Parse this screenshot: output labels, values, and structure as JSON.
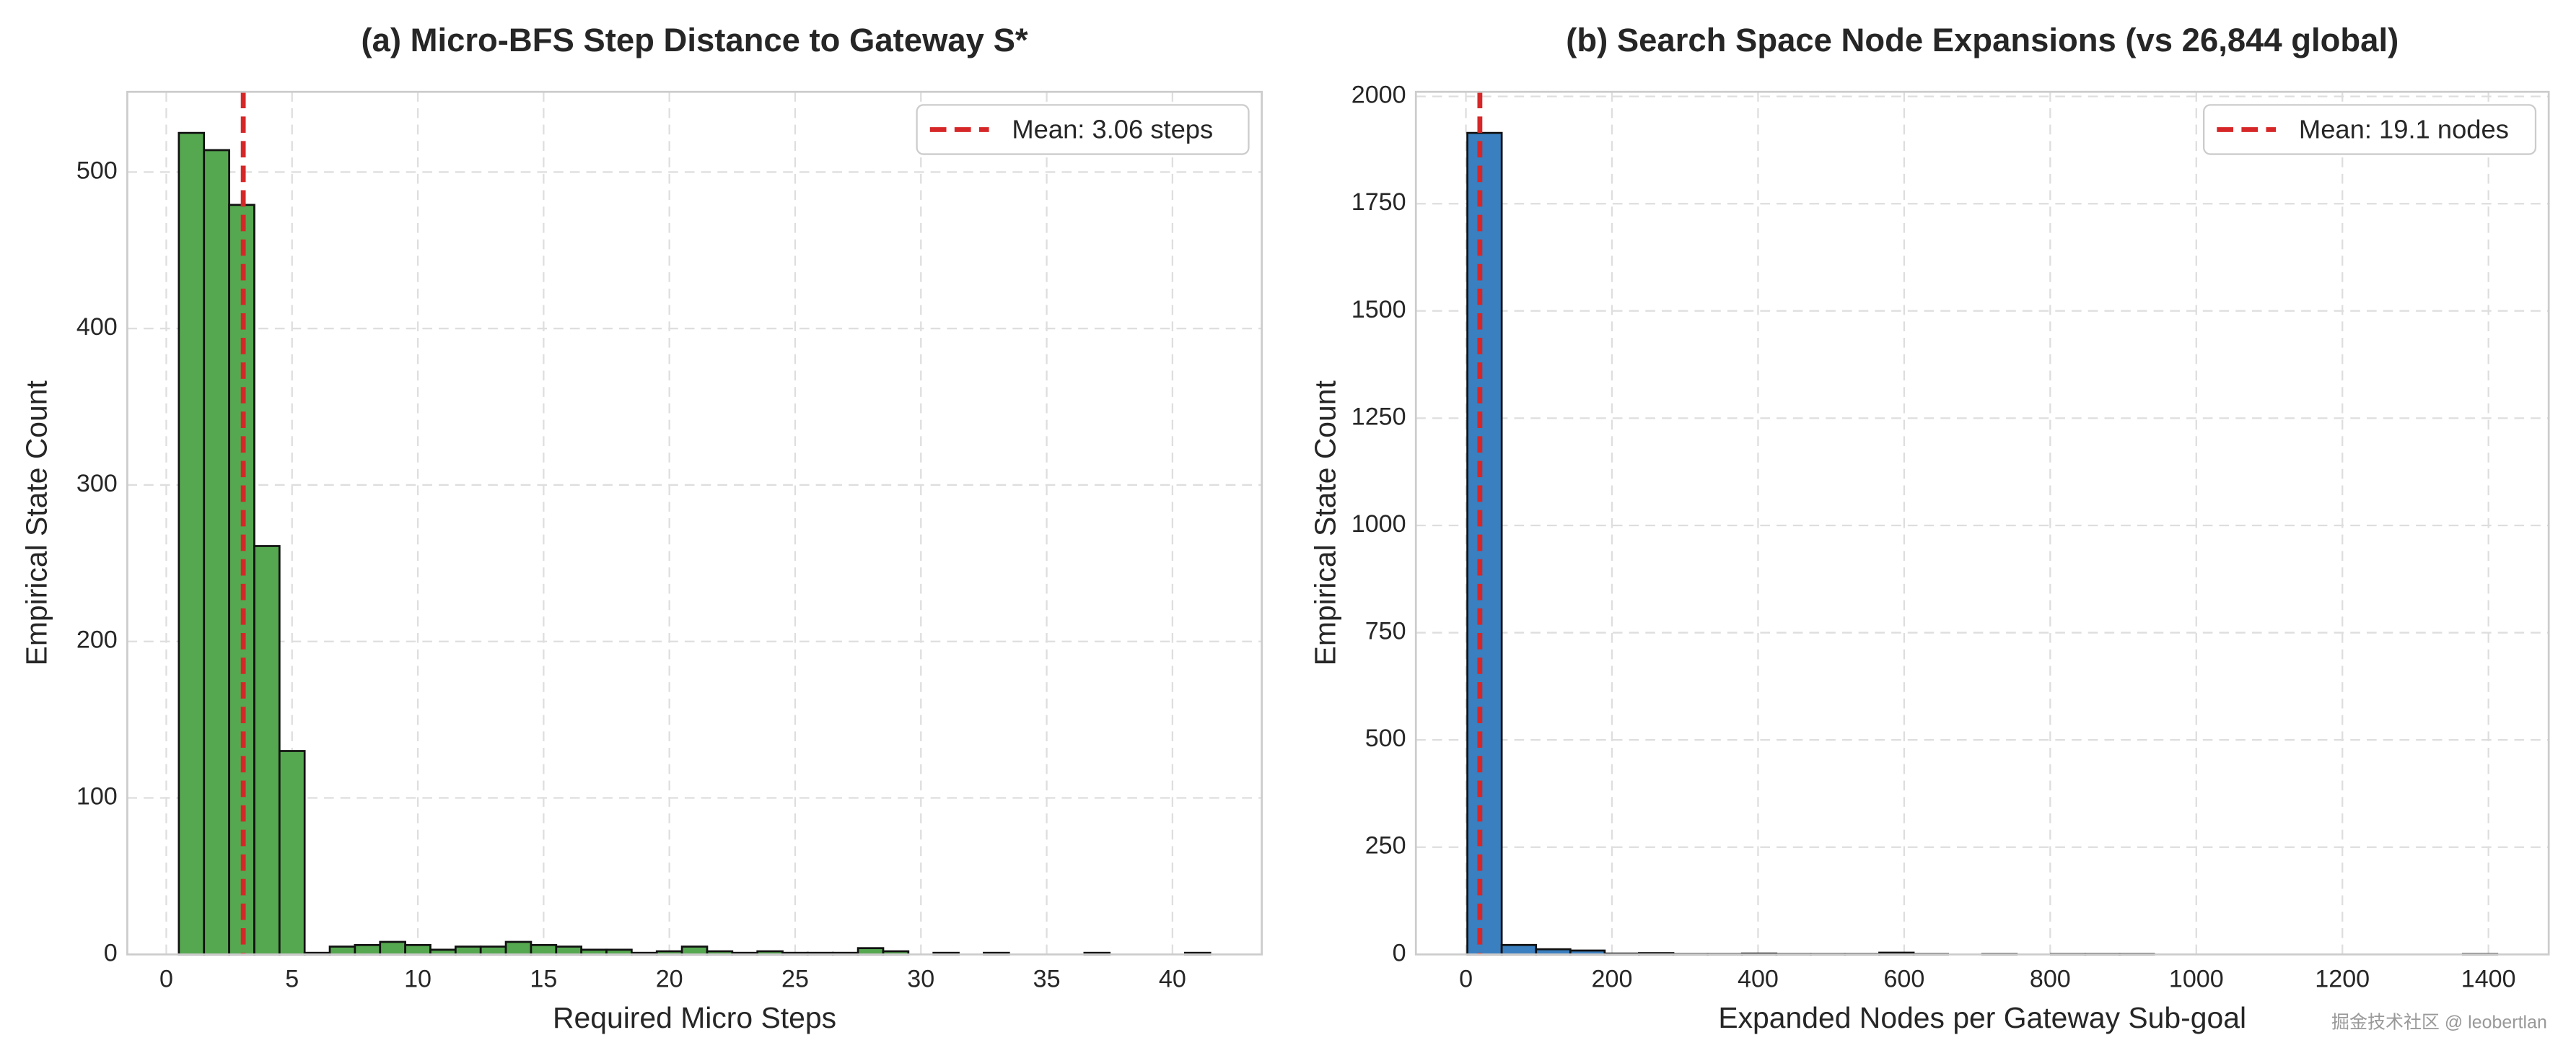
{
  "chart_data": [
    {
      "type": "histogram",
      "title": "(a) Micro-BFS Step Distance to Gateway S*",
      "x_label": "Required Micro Steps",
      "y_label": "Empirical State Count",
      "bins": [
        0.5,
        1.5,
        2.5,
        3.5,
        4.5,
        5.5,
        6.5,
        7.5,
        8.5,
        9.5,
        10.5,
        11.5,
        12.5,
        13.5,
        14.5,
        15.5,
        16.5,
        17.5,
        18.5,
        19.5,
        20.5,
        21.5,
        22.5,
        23.5,
        24.5,
        25.5,
        26.5,
        27.5,
        28.5,
        29.5,
        30.5,
        31.5,
        32.5,
        33.5,
        34.5,
        35.5,
        36.5,
        37.5,
        38.5,
        39.5,
        40.5,
        41.5
      ],
      "values": [
        525,
        514,
        479,
        261,
        130,
        1,
        5,
        6,
        8,
        6,
        3,
        5,
        5,
        8,
        6,
        5,
        3,
        3,
        1,
        2,
        5,
        2,
        1,
        2,
        1,
        1,
        1,
        4,
        2,
        0,
        1,
        0,
        1,
        0,
        0,
        0,
        1,
        0,
        0,
        0,
        1
      ],
      "color": "#55a84f",
      "mean": {
        "value": 3.06,
        "label": "Mean: 3.06 steps",
        "color": "#d62728"
      },
      "xlim": [
        -1.55,
        43.55
      ],
      "xticks": [
        0,
        5,
        10,
        15,
        20,
        25,
        30,
        35,
        40
      ],
      "ylim": [
        0,
        551.25
      ],
      "yticks": [
        0,
        100,
        200,
        300,
        400,
        500
      ],
      "grid": true,
      "legend": "upper right"
    },
    {
      "type": "histogram",
      "title": "(b) Search Space Node Expansions (vs 26,844 global)",
      "x_label": "Expanded Nodes per Gateway Sub-goal",
      "y_label": "Empirical State Count",
      "bins": [
        2,
        49,
        96,
        143,
        190,
        237,
        284,
        331,
        378,
        425,
        472,
        519,
        566,
        613,
        660,
        707,
        754,
        801,
        848,
        895,
        942,
        989,
        1036,
        1083,
        1130,
        1177,
        1224,
        1271,
        1318,
        1365,
        1412
      ],
      "values": [
        1915,
        22,
        12,
        9,
        2,
        3,
        1,
        1,
        2,
        1,
        1,
        1,
        4,
        1,
        0,
        1,
        0,
        1,
        1,
        1,
        0,
        0,
        0,
        0,
        0,
        0,
        0,
        0,
        0,
        1
      ],
      "color": "#3a7fbf",
      "mean": {
        "value": 19.1,
        "label": "Mean: 19.1 nodes",
        "color": "#d62728"
      },
      "xlim": [
        -68.5,
        1482.5
      ],
      "xticks": [
        0,
        200,
        400,
        600,
        800,
        1000,
        1200,
        1400
      ],
      "ylim": [
        0,
        2010.75
      ],
      "yticks": [
        0,
        250,
        500,
        750,
        1000,
        1250,
        1500,
        1750,
        2000
      ],
      "grid": true,
      "legend": "upper right"
    }
  ],
  "watermark": "掘金技术社区 @ leobertlan"
}
